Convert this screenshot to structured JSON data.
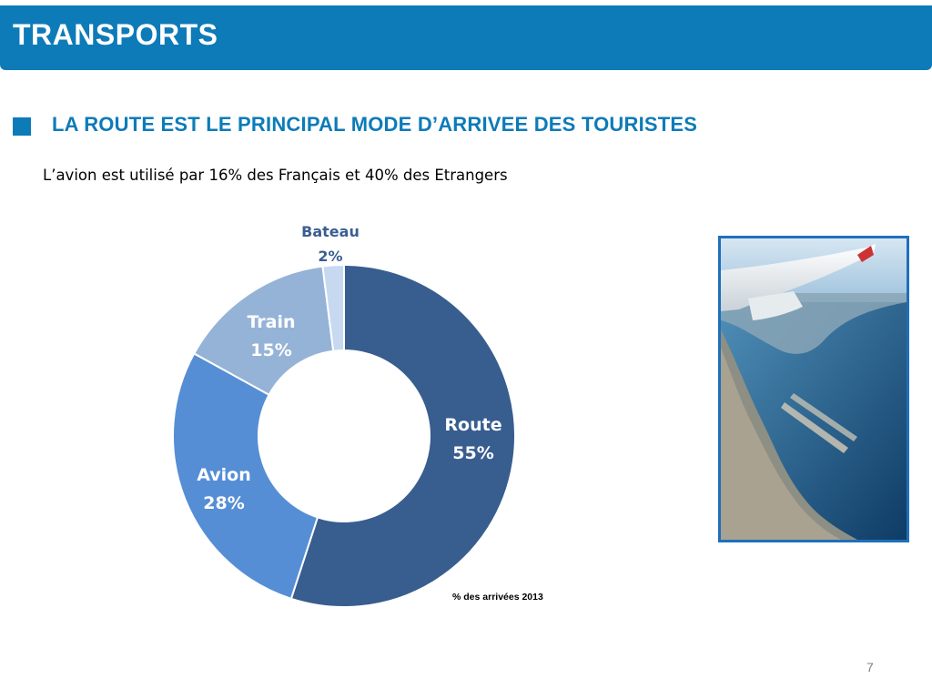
{
  "header": {
    "title": "TRANSPORTS"
  },
  "section": {
    "subtitle": "LA ROUTE EST LE PRINCIPAL MODE D’ARRIVEE DES TOURISTES"
  },
  "body": {
    "text": "L’avion est utilisé par 16% des Français et 40% des Etrangers"
  },
  "colors": {
    "header_bg": "#0d7bb8",
    "subtitle": "#0d7bb8",
    "route": "#385d8f",
    "avion": "#558ed5",
    "train": "#95b3d7",
    "bateau": "#c6d9f1"
  },
  "chart_data": {
    "type": "pie",
    "variant": "donut",
    "categories": [
      "Route",
      "Avion",
      "Train",
      "Bateau"
    ],
    "values": [
      55,
      28,
      15,
      2
    ],
    "value_labels": [
      "55%",
      "28%",
      "15%",
      "2%"
    ],
    "colors": [
      "#385d8f",
      "#558ed5",
      "#95b3d7",
      "#c6d9f1"
    ],
    "title": "",
    "note": "% des arrivées 2013",
    "legend": "none"
  },
  "image": {
    "icon": "airplane-wing-coastline-photo"
  },
  "footer": {
    "page_number": "7"
  }
}
